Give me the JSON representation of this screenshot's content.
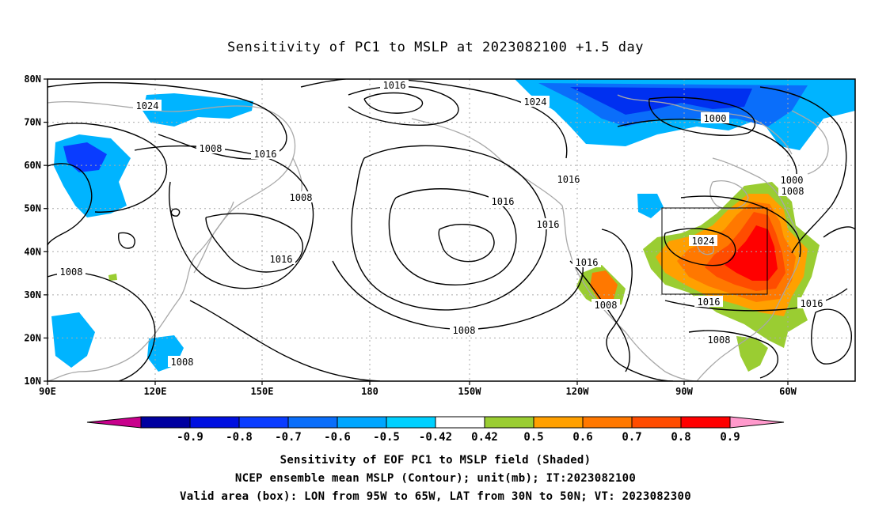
{
  "title": "Sensitivity of PC1 to MSLP at 2023082100 +1.5 day",
  "map": {
    "lon_range": [
      "90E",
      "50W"
    ],
    "lat_range": [
      "10N",
      "80N"
    ],
    "lon_ticks": [
      "90E",
      "120E",
      "150E",
      "180",
      "150W",
      "120W",
      "90W",
      "60W"
    ],
    "lat_ticks": [
      "80N",
      "70N",
      "60N",
      "50N",
      "40N",
      "30N",
      "20N",
      "10N"
    ],
    "contour_labels": [
      "1024",
      "1008",
      "1016",
      "1008",
      "1016",
      "1008",
      "1008",
      "1016",
      "1024",
      "1016",
      "1016",
      "1016",
      "1000",
      "1000",
      "1008",
      "1024",
      "1016",
      "1008",
      "1016",
      "1016",
      "1008",
      "1008"
    ],
    "valid_box": {
      "lon": [
        "95W",
        "65W"
      ],
      "lat": [
        "30N",
        "50N"
      ]
    }
  },
  "colorbar": {
    "labels": [
      "-0.9",
      "-0.8",
      "-0.7",
      "-0.6",
      "-0.5",
      "-0.42",
      "0.42",
      "0.5",
      "0.6",
      "0.7",
      "0.8",
      "0.9"
    ],
    "colors": [
      "#c8008c",
      "#0000a0",
      "#0010e0",
      "#0a3cff",
      "#0a6efa",
      "#00a6ff",
      "#00d0ff",
      "#ffffff",
      "#9acd32",
      "#ffa000",
      "#ff7800",
      "#ff4c00",
      "#ff0000",
      "#ff99cc"
    ]
  },
  "captions": {
    "line1": "Sensitivity of EOF PC1 to MSLP field (Shaded)",
    "line2": "NCEP ensemble mean MSLP (Contour); unit(mb); IT:2023082100",
    "line3": "Valid area (box): LON from 95W to 65W, LAT from 30N to 50N; VT: 2023082300"
  }
}
